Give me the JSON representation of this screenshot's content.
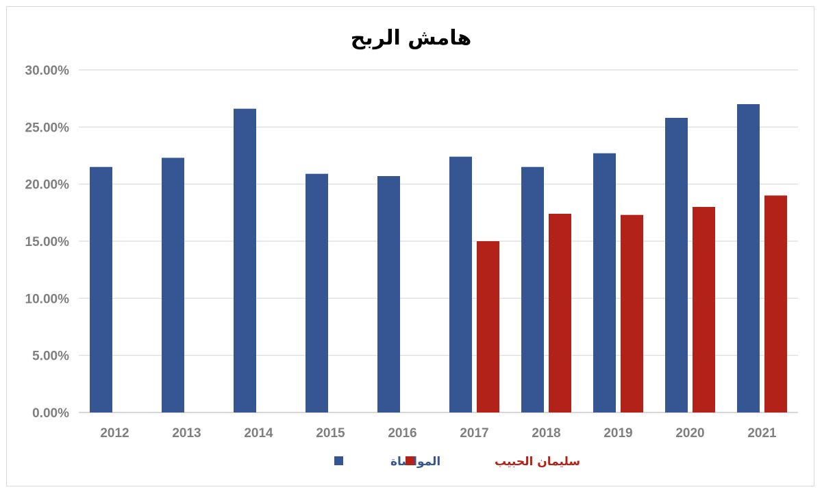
{
  "chart_data": {
    "type": "bar",
    "title": "هامش الربح",
    "categories": [
      "2012",
      "2013",
      "2014",
      "2015",
      "2016",
      "2017",
      "2018",
      "2019",
      "2020",
      "2021"
    ],
    "series": [
      {
        "name": "المواساة",
        "color": "#365693",
        "values": [
          21.5,
          22.3,
          26.6,
          20.9,
          20.7,
          22.4,
          21.5,
          22.7,
          25.8,
          27.0
        ]
      },
      {
        "name": "سليمان الحبيب",
        "color": "#b22218",
        "values": [
          null,
          null,
          null,
          null,
          null,
          15.0,
          17.4,
          17.3,
          18.0,
          19.0
        ]
      }
    ],
    "ylim": [
      0,
      30
    ],
    "yticks": [
      0,
      5,
      10,
      15,
      20,
      25,
      30
    ],
    "ytick_labels": [
      "0.00%",
      "5.00%",
      "10.00%",
      "15.00%",
      "20.00%",
      "25.00%",
      "30.00%"
    ],
    "xlabel": "",
    "ylabel": "",
    "grid": true,
    "legend_position": "bottom"
  }
}
